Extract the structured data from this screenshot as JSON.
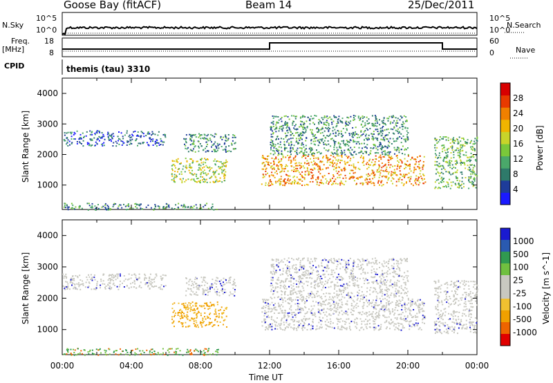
{
  "header": {
    "station": "Goose Bay (fitACF)",
    "beam": "Beam 14",
    "date": "25/Dec/2011"
  },
  "panels": {
    "nsky_label": "N.Sky",
    "nsearch_label": "N.Search",
    "freq_label_1": "Freq.",
    "freq_label_2": "[MHz]",
    "nave_label": "Nave",
    "cpid_label": "CPID",
    "cpid_value": "themis (tau) 3310",
    "noise_ticks_left": [
      "10^5",
      "10^0"
    ],
    "noise_ticks_right": [
      "10^5",
      "10^0"
    ],
    "freq_ticks_left": [
      "18",
      "8"
    ],
    "freq_ticks_right": [
      "60",
      "0"
    ]
  },
  "colors": {
    "power": [
      "#1a1aff",
      "#1e3c9a",
      "#2e7a6a",
      "#4aa86a",
      "#7ac83a",
      "#c8d42a",
      "#f0b400",
      "#f08000",
      "#e83a00",
      "#d80000"
    ],
    "velocity": [
      "#e00000",
      "#ee6400",
      "#f0a000",
      "#f0c030",
      "#c8c8c0",
      "#c8c8c0",
      "#70c040",
      "#309a50",
      "#2a5ab0",
      "#1a1ad0"
    ],
    "ground": "#c8c8c0"
  },
  "chart_data": [
    {
      "type": "heatmap",
      "title": "",
      "xlabel": "Time UT",
      "ylabel": "Slant Range [km]",
      "colorbar_label": "Power [dB]",
      "colorbar_ticks": [
        "4",
        "8",
        "12",
        "16",
        "20",
        "24",
        "28"
      ],
      "xlim": [
        "00:00",
        "24:00"
      ],
      "ylim": [
        200,
        4500
      ],
      "x_ticks": [
        "00:00",
        "04:00",
        "08:00",
        "12:00",
        "16:00",
        "20:00",
        "00:00"
      ],
      "y_ticks": [
        "1000",
        "2000",
        "3000",
        "4000"
      ],
      "regions": [
        {
          "t0": 0.0,
          "t1": 9.0,
          "r0": 200,
          "r1": 420,
          "power": 10
        },
        {
          "t0": 0.0,
          "t1": 6.0,
          "r0": 2300,
          "r1": 2800,
          "power": 6
        },
        {
          "t0": 6.3,
          "t1": 9.5,
          "r0": 1100,
          "r1": 1900,
          "power": 14
        },
        {
          "t0": 7.0,
          "t1": 10.0,
          "r0": 2100,
          "r1": 2700,
          "power": 8
        },
        {
          "t0": 11.5,
          "t1": 21.0,
          "r0": 1000,
          "r1": 2000,
          "power": 20
        },
        {
          "t0": 12.0,
          "t1": 20.0,
          "r0": 2000,
          "r1": 3300,
          "power": 8
        },
        {
          "t0": 21.5,
          "t1": 24.0,
          "r0": 900,
          "r1": 2600,
          "power": 12
        }
      ]
    },
    {
      "type": "heatmap",
      "title": "",
      "xlabel": "Time UT",
      "ylabel": "Slant Range [km]",
      "colorbar_label": "Velocity [m s^-1]",
      "colorbar_ticks": [
        "1000",
        "500",
        "100",
        "25",
        "-25",
        "-100",
        "-500",
        "-1000"
      ],
      "xlim": [
        "00:00",
        "24:00"
      ],
      "ylim": [
        200,
        4500
      ],
      "x_ticks": [
        "00:00",
        "04:00",
        "08:00",
        "12:00",
        "16:00",
        "20:00",
        "00:00"
      ],
      "y_ticks": [
        "1000",
        "2000",
        "3000",
        "4000"
      ],
      "regions": [
        {
          "t0": 0.0,
          "t1": 9.0,
          "r0": 200,
          "r1": 420,
          "velocity": 50
        },
        {
          "t0": 0.0,
          "t1": 6.0,
          "r0": 2300,
          "r1": 2800,
          "velocity": 0
        },
        {
          "t0": 6.3,
          "t1": 9.5,
          "r0": 1100,
          "r1": 1900,
          "velocity": -150
        },
        {
          "t0": 7.0,
          "t1": 10.0,
          "r0": 2100,
          "r1": 2700,
          "velocity": 0
        },
        {
          "t0": 11.5,
          "t1": 21.0,
          "r0": 1000,
          "r1": 2000,
          "velocity": 0
        },
        {
          "t0": 12.0,
          "t1": 20.0,
          "r0": 2000,
          "r1": 3300,
          "velocity": 0
        },
        {
          "t0": 21.5,
          "t1": 24.0,
          "r0": 900,
          "r1": 2600,
          "velocity": 0
        }
      ]
    }
  ]
}
